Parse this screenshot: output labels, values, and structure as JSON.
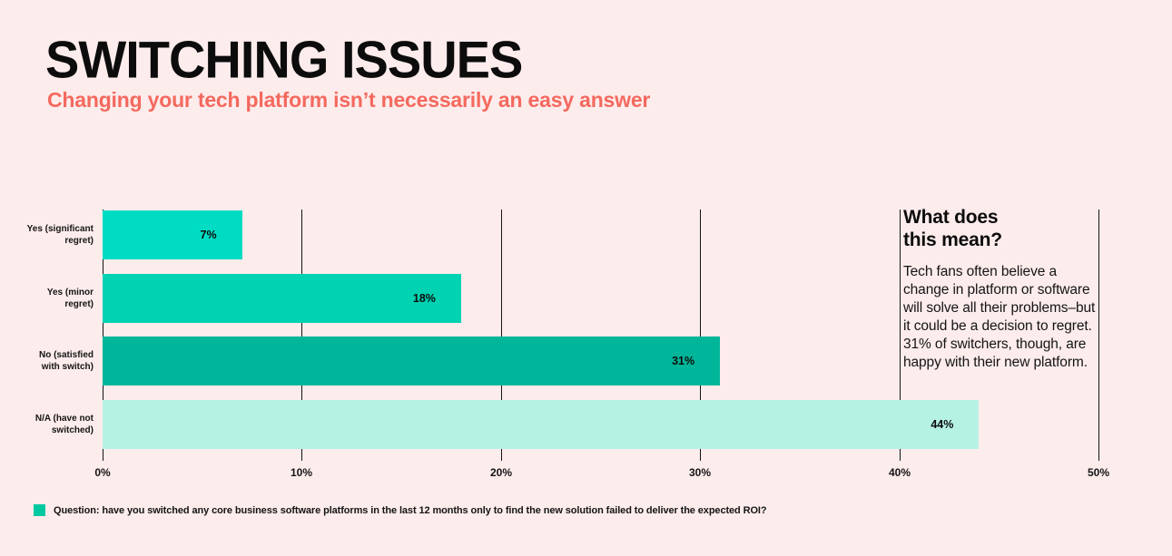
{
  "header": {
    "title": "SWITCHING ISSUES",
    "subtitle": "Changing your tech platform isn’t necessarily an easy answer"
  },
  "chart_data": {
    "type": "bar",
    "orientation": "horizontal",
    "title": "SWITCHING ISSUES",
    "categories": [
      "Yes (significant\nregret)",
      "Yes (minor\nregret)",
      "No (satisfied\nwith switch)",
      "N/A (have not\nswitched)"
    ],
    "values": [
      7,
      18,
      31,
      44
    ],
    "value_labels": [
      "7%",
      "18%",
      "31%",
      "44%"
    ],
    "bar_colors": [
      "#00dcc4",
      "#00d2b2",
      "#00b69a",
      "#b6f2e4"
    ],
    "x_ticks": [
      "0%",
      "10%",
      "20%",
      "30%",
      "40%",
      "50%"
    ],
    "xlim": [
      0,
      50
    ],
    "grid": "vertical-only",
    "legend_position": "bottom-left"
  },
  "aside": {
    "heading": "What does\nthis mean?",
    "body": "Tech fans often believe a change in platform or software will solve all their problems–but it could be a decision to regret. 31% of switchers, though, are happy with their new platform."
  },
  "legend": {
    "swatch_color": "#00c9a1",
    "label": "Question: have you switched any core business software platforms in the last 12 months only to find the new solution failed to deliver the expected ROI?"
  },
  "colors": {
    "background": "#fdecec",
    "title": "#0c0c0c",
    "subtitle": "#f4695e",
    "gridline": "#141414",
    "text": "#141414"
  }
}
